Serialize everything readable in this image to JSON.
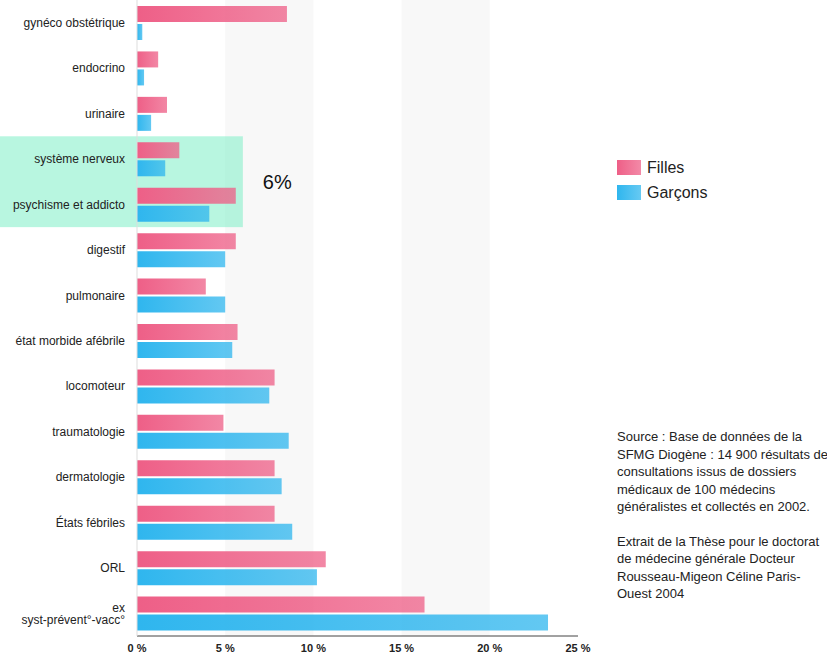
{
  "chart_data": {
    "type": "bar",
    "orientation": "horizontal",
    "categories": [
      "gynéco obstétrique",
      "endocrino",
      "urinaire",
      "système nerveux",
      "psychisme et addicto",
      "digestif",
      "pulmonaire",
      "état morbide afébrile",
      "locomoteur",
      "traumatologie",
      "dermatologie",
      "États fébriles",
      "ORL",
      "ex syst-prévent°-vacc°"
    ],
    "series": [
      {
        "name": "Filles",
        "color": "#ee5f87",
        "values": [
          8.5,
          1.2,
          1.7,
          2.4,
          5.6,
          5.6,
          3.9,
          5.7,
          7.8,
          4.9,
          7.8,
          7.8,
          10.7,
          16.3
        ]
      },
      {
        "name": "Garçons",
        "color": "#2fb6ee",
        "values": [
          0.3,
          0.4,
          0.8,
          1.6,
          4.1,
          5.0,
          5.0,
          5.4,
          7.5,
          8.6,
          8.2,
          8.8,
          10.2,
          23.3
        ]
      }
    ],
    "xlim": [
      0,
      25
    ],
    "xticks": [
      {
        "value": 0,
        "label": "0 %"
      },
      {
        "value": 5,
        "label": "5 %"
      },
      {
        "value": 10,
        "label": "10 %"
      },
      {
        "value": 15,
        "label": "15 %"
      },
      {
        "value": 20,
        "label": "20 %"
      },
      {
        "value": 25,
        "label": "25 %"
      }
    ],
    "grid": true,
    "legend": "right",
    "highlight": {
      "text": "6%",
      "value": 6,
      "categories": [
        "système nerveux",
        "psychisme et addicto"
      ],
      "color": "#7deec6"
    },
    "annotations": [
      "Source : Base de données de la SFMG Diogène : 14 900 résultats de consultations issus de dossiers médicaux de 100 médecins généralistes et collectés en 2002.",
      "Extrait de la Thèse pour le doctorat de médecine générale Docteur Rousseau-Migeon Céline Paris-Ouest 2004"
    ]
  }
}
